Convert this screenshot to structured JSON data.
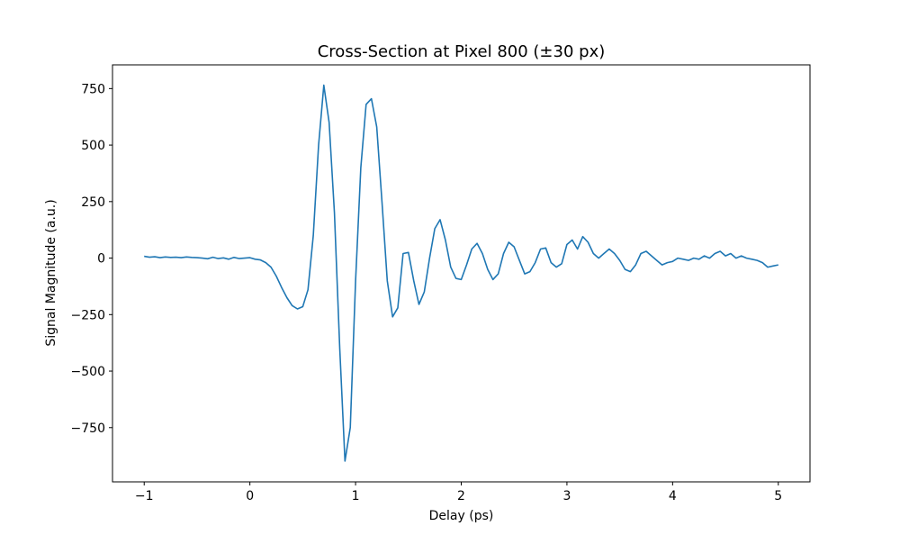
{
  "chart_data": {
    "type": "line",
    "title": "Cross-Section at Pixel 800 (±30 px)",
    "xlabel": "Delay (ps)",
    "ylabel": "Signal Magnitude (a.u.)",
    "xlim": [
      -1.3,
      5.3
    ],
    "ylim": [
      -990,
      855
    ],
    "x_ticks": [
      -1,
      0,
      1,
      2,
      3,
      4,
      5
    ],
    "y_ticks": [
      -750,
      -500,
      -250,
      0,
      250,
      500,
      750
    ],
    "y_tick_labels": [
      "−750",
      "−500",
      "−250",
      "0",
      "250",
      "500",
      "750"
    ],
    "grid": false,
    "line_color": "#1f77b4",
    "series": [
      {
        "points": [
          [
            -1.0,
            8
          ],
          [
            -0.95,
            4
          ],
          [
            -0.9,
            6
          ],
          [
            -0.85,
            2
          ],
          [
            -0.8,
            5
          ],
          [
            -0.75,
            3
          ],
          [
            -0.7,
            4
          ],
          [
            -0.65,
            2
          ],
          [
            -0.6,
            5
          ],
          [
            -0.55,
            3
          ],
          [
            -0.5,
            2
          ],
          [
            -0.45,
            0
          ],
          [
            -0.4,
            -3
          ],
          [
            -0.35,
            4
          ],
          [
            -0.3,
            -2
          ],
          [
            -0.25,
            1
          ],
          [
            -0.2,
            -5
          ],
          [
            -0.15,
            3
          ],
          [
            -0.1,
            -2
          ],
          [
            -0.05,
            0
          ],
          [
            0.0,
            2
          ],
          [
            0.05,
            -5
          ],
          [
            0.1,
            -8
          ],
          [
            0.15,
            -20
          ],
          [
            0.2,
            -40
          ],
          [
            0.25,
            -80
          ],
          [
            0.3,
            -130
          ],
          [
            0.35,
            -175
          ],
          [
            0.4,
            -210
          ],
          [
            0.45,
            -225
          ],
          [
            0.5,
            -215
          ],
          [
            0.55,
            -140
          ],
          [
            0.6,
            100
          ],
          [
            0.65,
            500
          ],
          [
            0.7,
            765
          ],
          [
            0.75,
            600
          ],
          [
            0.8,
            200
          ],
          [
            0.85,
            -400
          ],
          [
            0.9,
            -898
          ],
          [
            0.95,
            -750
          ],
          [
            1.0,
            -100
          ],
          [
            1.05,
            400
          ],
          [
            1.1,
            680
          ],
          [
            1.15,
            705
          ],
          [
            1.2,
            580
          ],
          [
            1.25,
            250
          ],
          [
            1.3,
            -100
          ],
          [
            1.35,
            -260
          ],
          [
            1.4,
            -220
          ],
          [
            1.45,
            20
          ],
          [
            1.5,
            25
          ],
          [
            1.55,
            -100
          ],
          [
            1.6,
            -205
          ],
          [
            1.65,
            -150
          ],
          [
            1.7,
            0
          ],
          [
            1.75,
            130
          ],
          [
            1.8,
            170
          ],
          [
            1.85,
            80
          ],
          [
            1.9,
            -40
          ],
          [
            1.95,
            -90
          ],
          [
            2.0,
            -95
          ],
          [
            2.05,
            -30
          ],
          [
            2.1,
            40
          ],
          [
            2.15,
            65
          ],
          [
            2.2,
            20
          ],
          [
            2.25,
            -50
          ],
          [
            2.3,
            -95
          ],
          [
            2.35,
            -70
          ],
          [
            2.4,
            20
          ],
          [
            2.45,
            70
          ],
          [
            2.5,
            50
          ],
          [
            2.55,
            -10
          ],
          [
            2.6,
            -70
          ],
          [
            2.65,
            -60
          ],
          [
            2.7,
            -20
          ],
          [
            2.75,
            40
          ],
          [
            2.8,
            45
          ],
          [
            2.85,
            -20
          ],
          [
            2.9,
            -40
          ],
          [
            2.95,
            -25
          ],
          [
            3.0,
            60
          ],
          [
            3.05,
            80
          ],
          [
            3.1,
            40
          ],
          [
            3.15,
            95
          ],
          [
            3.2,
            70
          ],
          [
            3.25,
            20
          ],
          [
            3.3,
            0
          ],
          [
            3.35,
            20
          ],
          [
            3.4,
            40
          ],
          [
            3.45,
            20
          ],
          [
            3.5,
            -10
          ],
          [
            3.55,
            -50
          ],
          [
            3.6,
            -60
          ],
          [
            3.65,
            -30
          ],
          [
            3.7,
            20
          ],
          [
            3.75,
            30
          ],
          [
            3.8,
            10
          ],
          [
            3.85,
            -10
          ],
          [
            3.9,
            -30
          ],
          [
            3.95,
            -20
          ],
          [
            4.0,
            -15
          ],
          [
            4.05,
            0
          ],
          [
            4.1,
            -5
          ],
          [
            4.15,
            -10
          ],
          [
            4.2,
            0
          ],
          [
            4.25,
            -5
          ],
          [
            4.3,
            10
          ],
          [
            4.35,
            0
          ],
          [
            4.4,
            20
          ],
          [
            4.45,
            30
          ],
          [
            4.5,
            10
          ],
          [
            4.55,
            20
          ],
          [
            4.6,
            0
          ],
          [
            4.65,
            10
          ],
          [
            4.7,
            0
          ],
          [
            4.75,
            -5
          ],
          [
            4.8,
            -10
          ],
          [
            4.85,
            -20
          ],
          [
            4.9,
            -40
          ],
          [
            4.95,
            -35
          ],
          [
            5.0,
            -30
          ]
        ]
      }
    ]
  }
}
